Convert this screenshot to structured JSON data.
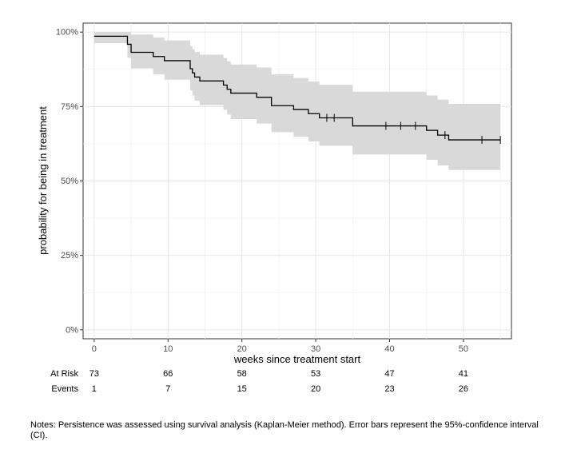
{
  "chart_data": {
    "type": "line",
    "subtype": "kaplan-meier step curve with 95% confidence band",
    "title": "",
    "xlabel": "weeks since treatment start",
    "ylabel": "probability for being in treatment",
    "xlim": [
      -1.5,
      56.5
    ],
    "ylim": [
      -0.03,
      1.03
    ],
    "x_ticks": [
      0,
      10,
      20,
      30,
      40,
      50
    ],
    "y_ticks": [
      {
        "value": 0,
        "label": "0%"
      },
      {
        "value": 0.25,
        "label": "25%"
      },
      {
        "value": 0.5,
        "label": "50%"
      },
      {
        "value": 0.75,
        "label": "75%"
      },
      {
        "value": 1.0,
        "label": "100%"
      }
    ],
    "grid": true,
    "series": [
      {
        "line_color": "#000000",
        "band_color": "#d9d9d9",
        "points": [
          {
            "x": 0,
            "y": 0.986,
            "lo": 0.963,
            "hi": 1.0
          },
          {
            "x": 4.5,
            "y": 0.959,
            "lo": 0.914,
            "hi": 1.0
          },
          {
            "x": 5.0,
            "y": 0.932,
            "lo": 0.878,
            "hi": 0.992
          },
          {
            "x": 8.0,
            "y": 0.918,
            "lo": 0.858,
            "hi": 0.982
          },
          {
            "x": 9.5,
            "y": 0.904,
            "lo": 0.84,
            "hi": 0.972
          },
          {
            "x": 13.0,
            "y": 0.877,
            "lo": 0.804,
            "hi": 0.953
          },
          {
            "x": 13.3,
            "y": 0.863,
            "lo": 0.787,
            "hi": 0.943
          },
          {
            "x": 13.6,
            "y": 0.849,
            "lo": 0.77,
            "hi": 0.933
          },
          {
            "x": 14.3,
            "y": 0.836,
            "lo": 0.755,
            "hi": 0.924
          },
          {
            "x": 17.5,
            "y": 0.822,
            "lo": 0.739,
            "hi": 0.913
          },
          {
            "x": 18.0,
            "y": 0.808,
            "lo": 0.723,
            "hi": 0.902
          },
          {
            "x": 18.5,
            "y": 0.795,
            "lo": 0.708,
            "hi": 0.891
          },
          {
            "x": 22.0,
            "y": 0.781,
            "lo": 0.693,
            "hi": 0.881
          },
          {
            "x": 24.0,
            "y": 0.753,
            "lo": 0.664,
            "hi": 0.858
          },
          {
            "x": 27.0,
            "y": 0.74,
            "lo": 0.648,
            "hi": 0.846
          },
          {
            "x": 29.0,
            "y": 0.726,
            "lo": 0.633,
            "hi": 0.834
          },
          {
            "x": 30.5,
            "y": 0.712,
            "lo": 0.618,
            "hi": 0.823
          },
          {
            "x": 35.0,
            "y": 0.685,
            "lo": 0.589,
            "hi": 0.8
          },
          {
            "x": 45.0,
            "y": 0.67,
            "lo": 0.571,
            "hi": 0.787
          },
          {
            "x": 46.5,
            "y": 0.654,
            "lo": 0.552,
            "hi": 0.773
          },
          {
            "x": 48.0,
            "y": 0.638,
            "lo": 0.537,
            "hi": 0.759
          },
          {
            "x": 55.0,
            "y": 0.638,
            "lo": 0.537,
            "hi": 0.759
          }
        ],
        "censored": [
          {
            "x": 31.5,
            "y": 0.712
          },
          {
            "x": 32.5,
            "y": 0.712
          },
          {
            "x": 39.5,
            "y": 0.685
          },
          {
            "x": 41.5,
            "y": 0.685
          },
          {
            "x": 43.5,
            "y": 0.685
          },
          {
            "x": 47.5,
            "y": 0.654
          },
          {
            "x": 52.5,
            "y": 0.638
          },
          {
            "x": 55.0,
            "y": 0.638
          }
        ]
      }
    ],
    "risk_table": {
      "rows": [
        {
          "label": "At Risk",
          "values": [
            "73",
            "66",
            "58",
            "53",
            "47",
            "41"
          ]
        },
        {
          "label": "Events",
          "values": [
            "1",
            "7",
            "15",
            "20",
            "23",
            "26"
          ]
        }
      ]
    }
  },
  "notes": "Notes: Persistence was assessed using survival analysis (Kaplan-Meier method). Error bars represent the 95%-confidence interval (CI)."
}
